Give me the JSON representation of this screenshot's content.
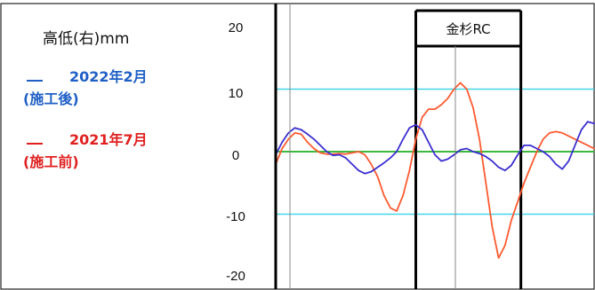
{
  "chart_data": {
    "type": "line",
    "title": "高低(右)mm",
    "ylim": [
      -20,
      20
    ],
    "y_ticks": [
      {
        "value": 20,
        "label": "20"
      },
      {
        "value": 10,
        "label": "10"
      },
      {
        "value": 0,
        "label": "0"
      },
      {
        "value": -10,
        "label": "-10"
      },
      {
        "value": -20,
        "label": "-20"
      }
    ],
    "x_range": [
      0,
      100
    ],
    "section": {
      "label": "金杉RC",
      "x_start": 44,
      "x_end": 77
    },
    "guides": {
      "y_values": [
        10,
        -10
      ],
      "color": "#44d6e8"
    },
    "zero_line_color": "#3cb83c",
    "series": [
      {
        "name": "2022年2月",
        "name_note": "(施工後)",
        "color": "#1f5fc6",
        "line_color": "#3a2ed0",
        "x": [
          0,
          2,
          4,
          6,
          8,
          10,
          12,
          14,
          16,
          18,
          20,
          22,
          24,
          26,
          28,
          30,
          32,
          34,
          36,
          38,
          40,
          42,
          44,
          46,
          48,
          50,
          52,
          54,
          56,
          58,
          60,
          62,
          64,
          66,
          68,
          70,
          72,
          74,
          76,
          78,
          80,
          82,
          84,
          86,
          88,
          90,
          92,
          94,
          96,
          98,
          100
        ],
        "values": [
          -0.5,
          1.5,
          3.0,
          3.8,
          3.5,
          2.8,
          2.0,
          1.0,
          0.0,
          -0.6,
          -0.5,
          -1.0,
          -2.0,
          -3.0,
          -3.5,
          -3.2,
          -2.5,
          -1.8,
          -1.0,
          0.0,
          2.0,
          3.8,
          4.3,
          3.5,
          1.5,
          -0.5,
          -1.5,
          -1.2,
          -0.5,
          0.3,
          0.5,
          0.0,
          -0.3,
          -0.8,
          -1.5,
          -2.5,
          -3.0,
          -2.2,
          -0.5,
          1.0,
          1.0,
          0.5,
          0.0,
          -0.8,
          -2.0,
          -2.8,
          -1.5,
          1.0,
          3.5,
          4.8,
          4.5
        ]
      },
      {
        "name": "2021年7月",
        "name_note": "(施工前)",
        "color": "#e02020",
        "line_color": "#ff5a30",
        "x": [
          0,
          2,
          4,
          6,
          8,
          10,
          12,
          14,
          16,
          18,
          20,
          22,
          24,
          26,
          28,
          30,
          32,
          34,
          36,
          38,
          40,
          42,
          44,
          46,
          48,
          50,
          52,
          54,
          56,
          58,
          60,
          62,
          64,
          66,
          68,
          70,
          72,
          74,
          76,
          78,
          80,
          82,
          84,
          86,
          88,
          90,
          92,
          94,
          96,
          98,
          100
        ],
        "values": [
          -2.0,
          0.5,
          2.0,
          3.0,
          2.8,
          1.5,
          0.5,
          -0.2,
          -0.4,
          -0.4,
          -0.3,
          -0.4,
          -0.2,
          0.0,
          -0.5,
          -2.0,
          -4.0,
          -7.0,
          -9.0,
          -9.5,
          -7.0,
          -3.0,
          2.0,
          5.5,
          6.8,
          6.8,
          7.5,
          8.5,
          10.0,
          11.0,
          10.0,
          7.0,
          2.0,
          -5.0,
          -12.0,
          -17.0,
          -15.0,
          -11.0,
          -8.0,
          -5.0,
          -2.5,
          0.0,
          2.0,
          3.0,
          3.2,
          3.0,
          2.5,
          2.0,
          1.5,
          1.0,
          0.5
        ]
      }
    ]
  }
}
